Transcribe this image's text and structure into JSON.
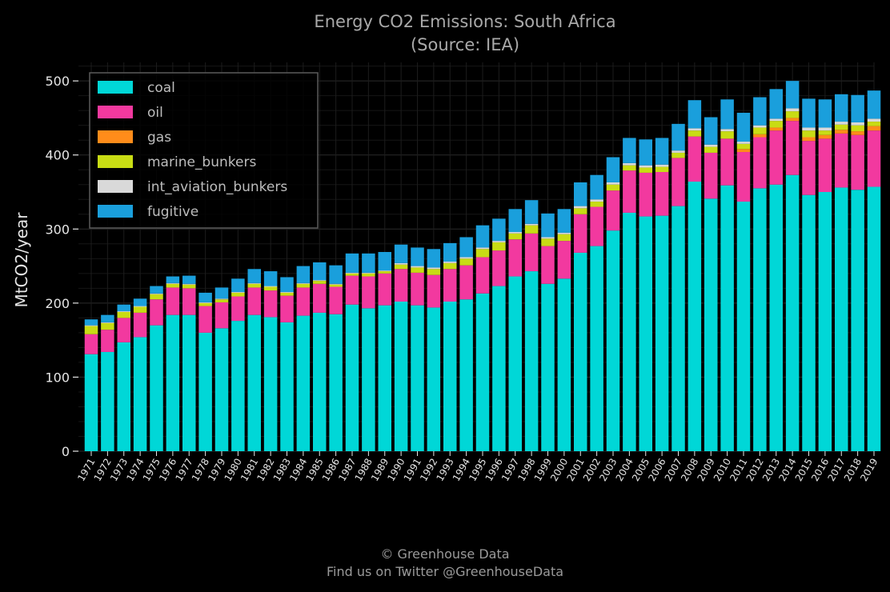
{
  "chart_data": {
    "type": "bar",
    "stacked": true,
    "title": "Energy CO2 Emissions: South Africa",
    "subtitle": "(Source: IEA)",
    "xlabel": "",
    "ylabel": "MtCO2/year",
    "ylim": [
      0,
      525
    ],
    "yticks": [
      0,
      100,
      200,
      300,
      400,
      500
    ],
    "grid": true,
    "legend_position": "top-left",
    "categories": [
      "1971",
      "1972",
      "1973",
      "1974",
      "1975",
      "1976",
      "1977",
      "1978",
      "1979",
      "1980",
      "1981",
      "1982",
      "1983",
      "1984",
      "1985",
      "1986",
      "1987",
      "1988",
      "1989",
      "1990",
      "1991",
      "1992",
      "1993",
      "1994",
      "1995",
      "1996",
      "1997",
      "1998",
      "1999",
      "2000",
      "2001",
      "2002",
      "2003",
      "2004",
      "2005",
      "2006",
      "2007",
      "2008",
      "2009",
      "2010",
      "2011",
      "2012",
      "2013",
      "2014",
      "2015",
      "2016",
      "2017",
      "2018",
      "2019"
    ],
    "series": [
      {
        "name": "coal",
        "color": "#00d7d7",
        "values": [
          131,
          134,
          147,
          154,
          170,
          184,
          184,
          160,
          166,
          176,
          184,
          181,
          174,
          183,
          187,
          185,
          198,
          193,
          197,
          202,
          197,
          194,
          202,
          205,
          213,
          223,
          236,
          243,
          226,
          233,
          268,
          277,
          298,
          322,
          317,
          318,
          331,
          364,
          341,
          359,
          337,
          355,
          360,
          373,
          346,
          350,
          356,
          353,
          357
        ]
      },
      {
        "name": "oil",
        "color": "#f2399f",
        "values": [
          27,
          30,
          33,
          33,
          35,
          37,
          36,
          36,
          35,
          33,
          37,
          36,
          36,
          38,
          39,
          37,
          39,
          43,
          43,
          44,
          44,
          44,
          44,
          46,
          49,
          48,
          50,
          51,
          51,
          51,
          52,
          53,
          54,
          57,
          59,
          59,
          65,
          61,
          62,
          63,
          67,
          69,
          73,
          73,
          73,
          72,
          73,
          74,
          76
        ]
      },
      {
        "name": "gas",
        "color": "#ff8c1a",
        "values": [
          0,
          0,
          0,
          0,
          0,
          0,
          0,
          0,
          0,
          0,
          0,
          0,
          0,
          0,
          0,
          0,
          0,
          0,
          0,
          0,
          0,
          0,
          0,
          0,
          0,
          0,
          0,
          0,
          0,
          0,
          0,
          0,
          0,
          0,
          0,
          0,
          0,
          0,
          0,
          0,
          4,
          4,
          4,
          4,
          5,
          5,
          5,
          5,
          6
        ]
      },
      {
        "name": "marine_bunkers",
        "color": "#c8dc14",
        "values": [
          11,
          9,
          8,
          8,
          7,
          5,
          5,
          4,
          4,
          5,
          5,
          5,
          4,
          5,
          4,
          3,
          3,
          4,
          3,
          6,
          7,
          8,
          8,
          9,
          11,
          11,
          8,
          11,
          10,
          9,
          8,
          7,
          8,
          7,
          7,
          7,
          7,
          8,
          8,
          10,
          7,
          9,
          9,
          9,
          9,
          6,
          7,
          8,
          6
        ]
      },
      {
        "name": "int_aviation_bunkers",
        "color": "#d9d9d9",
        "values": [
          1,
          1,
          1,
          1,
          1,
          1,
          1,
          1,
          1,
          1,
          1,
          1,
          1,
          1,
          1,
          1,
          1,
          1,
          1,
          2,
          2,
          2,
          2,
          2,
          2,
          2,
          2,
          2,
          2,
          2,
          3,
          3,
          3,
          3,
          3,
          3,
          3,
          3,
          3,
          3,
          3,
          3,
          3,
          4,
          4,
          4,
          4,
          4,
          4
        ]
      },
      {
        "name": "fugitive",
        "color": "#1a9fdc",
        "values": [
          8,
          10,
          9,
          10,
          10,
          9,
          11,
          13,
          15,
          18,
          19,
          20,
          20,
          23,
          24,
          25,
          26,
          26,
          25,
          25,
          25,
          25,
          25,
          27,
          30,
          30,
          31,
          32,
          32,
          32,
          32,
          33,
          34,
          34,
          35,
          36,
          36,
          38,
          37,
          40,
          39,
          38,
          40,
          37,
          39,
          38,
          37,
          37,
          38
        ]
      }
    ]
  },
  "credit": {
    "line1": "© Greenhouse Data",
    "line2": "Find us on Twitter @GreenhouseData"
  }
}
